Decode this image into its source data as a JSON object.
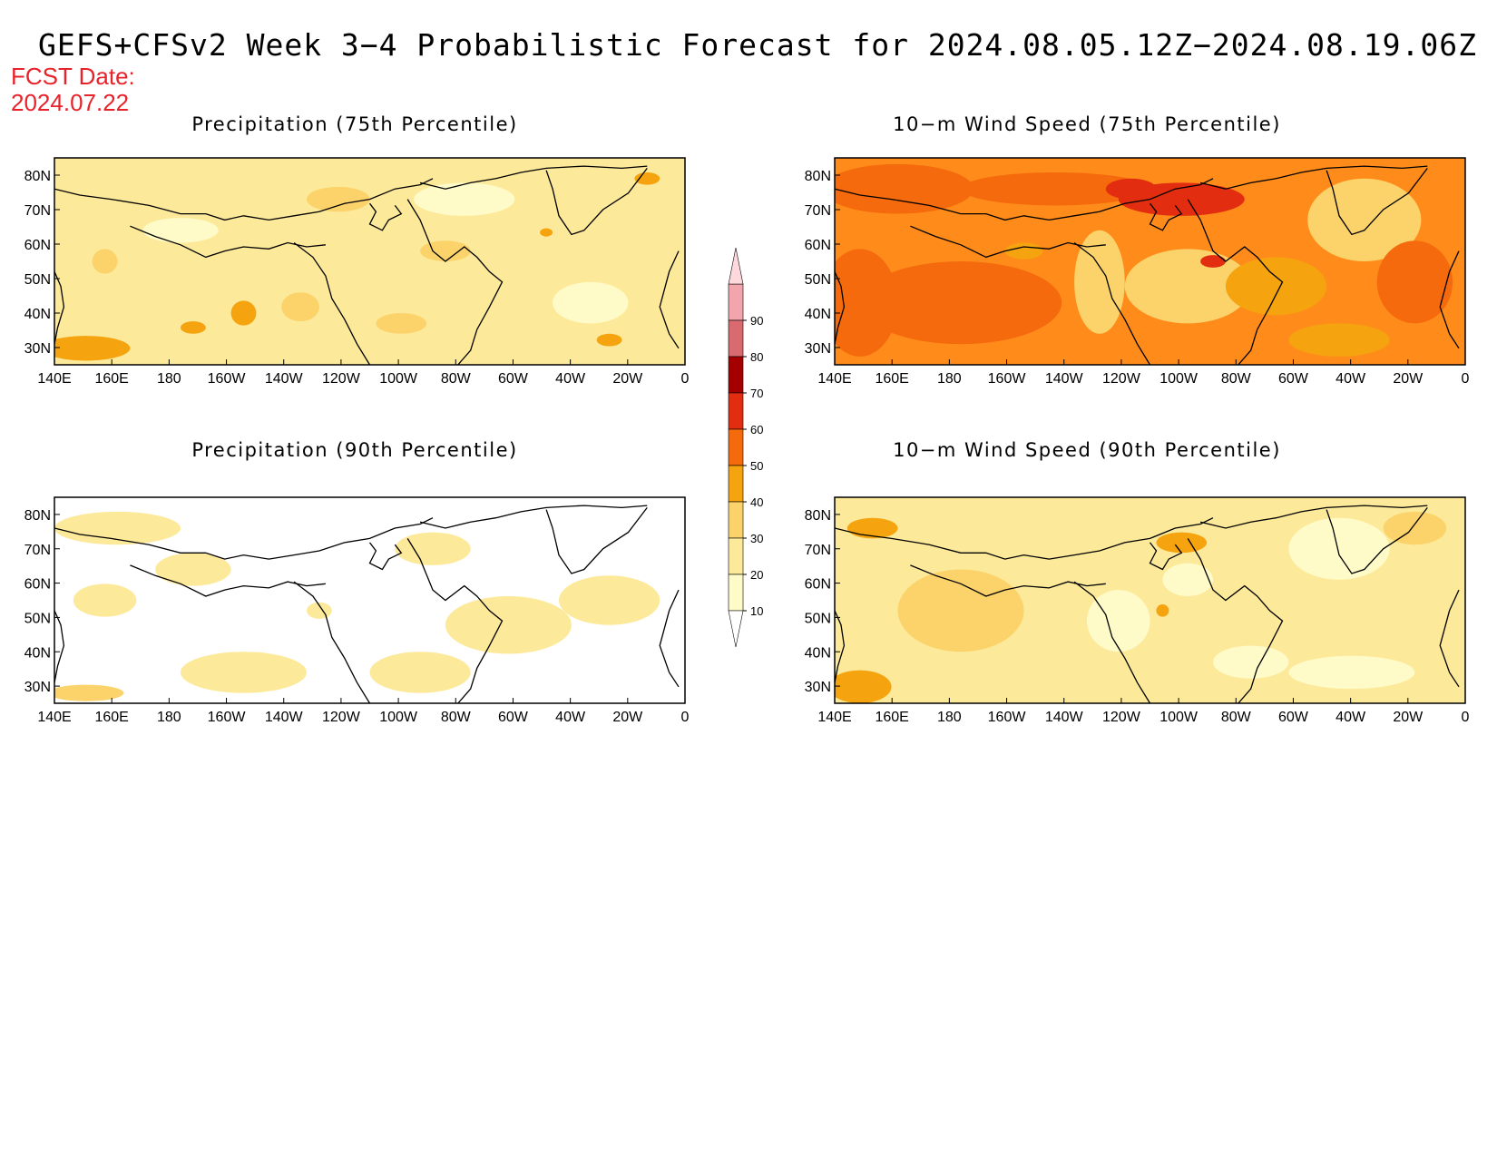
{
  "title": "GEFS+CFSv2 Week 3−4 Probabilistic Forecast for 2024.08.05.12Z−2024.08.19.06Z",
  "fcst": {
    "label": "FCST Date:",
    "date": "2024.07.22"
  },
  "panels": [
    {
      "title": "Precipitation (75th Percentile)",
      "base": "#fce99a"
    },
    {
      "title": "10−m Wind Speed (75th Percentile)",
      "base": "#ff8c1a"
    },
    {
      "title": "Precipitation (90th Percentile)",
      "base": "#ffffff"
    },
    {
      "title": "10−m Wind Speed (90th Percentile)",
      "base": "#fce99a"
    }
  ],
  "lat_labels": [
    "80N",
    "70N",
    "60N",
    "50N",
    "40N",
    "30N"
  ],
  "lon_labels": [
    "140E",
    "160E",
    "180",
    "160W",
    "140W",
    "120W",
    "100W",
    "80W",
    "60W",
    "40W",
    "20W",
    "0"
  ],
  "colorbar": {
    "levels": [
      "10",
      "20",
      "30",
      "40",
      "50",
      "60",
      "70",
      "80",
      "90"
    ],
    "colors": [
      "#fffbc8",
      "#fce99a",
      "#fbd36a",
      "#f5a30e",
      "#f56a0d",
      "#e32d10",
      "#a50000",
      "#d96a70",
      "#f3a5ad",
      "#fdd8dc"
    ]
  }
}
